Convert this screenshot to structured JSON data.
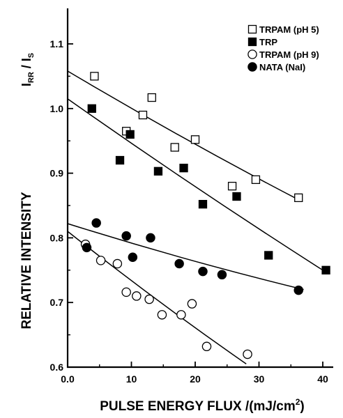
{
  "chart_data": {
    "type": "scatter",
    "title": "",
    "xlabel": "PULSE ENERGY FLUX /(mJ/cm²)",
    "ylabel": "RELATIVE INTENSITY",
    "ylabel_ratio": "I_RR / I_S",
    "xlim": [
      0,
      42
    ],
    "ylim": [
      0.6,
      1.15
    ],
    "x_ticks": [
      "0.0",
      "10",
      "20",
      "30",
      "40"
    ],
    "y_ticks": [
      "0.6",
      "0.7",
      "0.8",
      "0.9",
      "1.0",
      "1.1"
    ],
    "grid": false,
    "legend_position": "top-right",
    "series": [
      {
        "name": "TRPAM (pH 5)",
        "marker": "open-square",
        "x": [
          4.2,
          9.2,
          11.8,
          13.2,
          16.8,
          20.0,
          25.8,
          29.5,
          36.2
        ],
        "y": [
          1.05,
          0.965,
          0.99,
          1.017,
          0.94,
          0.952,
          0.88,
          0.89,
          0.862
        ],
        "fit": {
          "x": [
            0,
            36
          ],
          "y": [
            1.058,
            0.86
          ]
        }
      },
      {
        "name": "TRP",
        "marker": "filled-square",
        "x": [
          3.8,
          8.2,
          9.8,
          14.2,
          18.2,
          21.2,
          26.5,
          31.5,
          40.5
        ],
        "y": [
          1.0,
          0.92,
          0.96,
          0.903,
          0.908,
          0.852,
          0.864,
          0.773,
          0.75
        ],
        "fit": {
          "x": [
            0,
            40
          ],
          "y": [
            1.015,
            0.75
          ]
        }
      },
      {
        "name": "TRPAM (pH 9)",
        "marker": "open-circle",
        "x": [
          2.8,
          5.2,
          7.8,
          9.2,
          10.8,
          12.8,
          14.8,
          17.8,
          19.5,
          21.8,
          28.2
        ],
        "y": [
          0.79,
          0.765,
          0.76,
          0.716,
          0.71,
          0.705,
          0.681,
          0.681,
          0.698,
          0.632,
          0.62
        ],
        "fit": {
          "x": [
            0,
            28
          ],
          "y": [
            0.81,
            0.605
          ]
        }
      },
      {
        "name": "NATA (NaI)",
        "marker": "filled-circle",
        "x": [
          3.0,
          4.5,
          9.2,
          10.2,
          13.0,
          17.5,
          21.2,
          24.2,
          36.2
        ],
        "y": [
          0.785,
          0.823,
          0.803,
          0.77,
          0.8,
          0.76,
          0.748,
          0.743,
          0.719
        ],
        "fit": {
          "x": [
            0,
            37
          ],
          "y": [
            0.822,
            0.72
          ]
        }
      }
    ]
  }
}
